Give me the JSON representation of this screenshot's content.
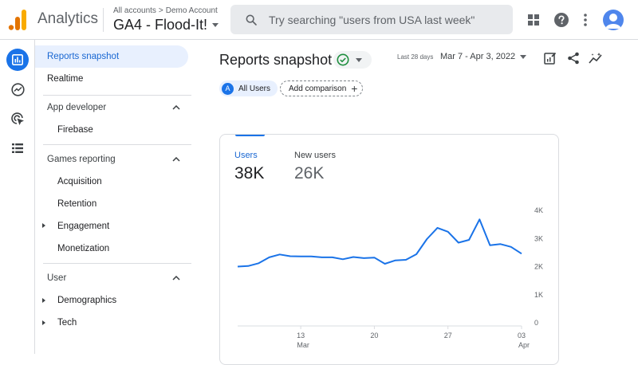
{
  "header": {
    "app_name": "Analytics",
    "breadcrumb_account": "All accounts",
    "breadcrumb_separator": ">",
    "breadcrumb_property": "Demo Account",
    "property_name": "GA4 - Flood-It!",
    "search_placeholder": "Try searching \"users from USA last week\"",
    "icons": [
      "apps-icon",
      "help-icon",
      "more-vert-icon",
      "account-avatar"
    ]
  },
  "rail": {
    "items": [
      "reports-icon",
      "explore-icon",
      "advertising-icon",
      "configure-icon"
    ],
    "active": "reports-icon"
  },
  "sidebar": {
    "reports_snapshot": "Reports snapshot",
    "realtime": "Realtime",
    "app_developer": {
      "title": "App developer",
      "items": [
        "Firebase"
      ]
    },
    "games_reporting": {
      "title": "Games reporting",
      "items": [
        "Acquisition",
        "Retention",
        "Engagement",
        "Monetization"
      ]
    },
    "user": {
      "title": "User",
      "items": [
        "Demographics",
        "Tech"
      ]
    }
  },
  "main": {
    "title": "Reports snapshot",
    "date_label": "Last 28 days",
    "date_range": "Mar 7 - Apr 3, 2022",
    "comparison_badge": "A",
    "segment_label": "All Users",
    "add_comparison": "Add comparison",
    "actions": [
      "customize-report-icon",
      "share-icon",
      "insights-icon"
    ]
  },
  "card": {
    "metrics": [
      {
        "label": "Users",
        "value": "38K",
        "active": true
      },
      {
        "label": "New users",
        "value": "26K",
        "active": false
      }
    ]
  },
  "chart_data": {
    "type": "line",
    "series": [
      {
        "values": [
          2000,
          2020,
          2120,
          2330,
          2430,
          2370,
          2360,
          2360,
          2330,
          2330,
          2260,
          2340,
          2300,
          2320,
          2100,
          2220,
          2240,
          2440,
          2980,
          3380,
          3240,
          2850,
          2950,
          3680,
          2760,
          2800,
          2700,
          2460
        ]
      }
    ],
    "x_tick_labels": [
      {
        "day": "13",
        "month": "Mar",
        "index": 6
      },
      {
        "day": "20",
        "month": "",
        "index": 13
      },
      {
        "day": "27",
        "month": "",
        "index": 20
      },
      {
        "day": "03",
        "month": "Apr",
        "index": 27
      }
    ],
    "y_ticks": [
      0,
      1000,
      2000,
      3000,
      4000
    ],
    "y_tick_labels": [
      "0",
      "1K",
      "2K",
      "3K",
      "4K"
    ],
    "ylim": [
      0,
      4000
    ],
    "line_color": "#1a73e8",
    "grid": false
  },
  "colors": {
    "accent": "#1a73e8",
    "active_nav_bg": "#e8f0fe"
  }
}
